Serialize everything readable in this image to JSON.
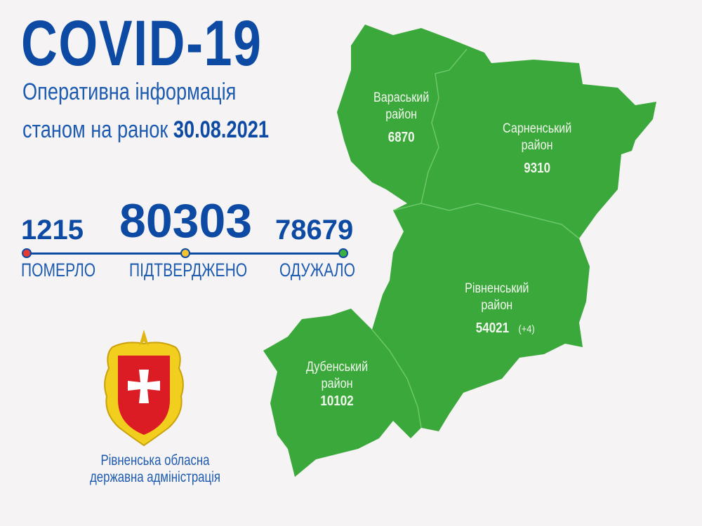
{
  "header": {
    "title": "COVID-19",
    "subtitle_line1": "Оперативна інформація",
    "subtitle_line2_prefix": "станом на ранок",
    "date": "30.08.2021"
  },
  "stats": {
    "deaths": {
      "value": "1215",
      "label": "ПОМЕРЛО",
      "color": "#e53935"
    },
    "confirmed": {
      "value": "80303",
      "label": "ПІДТВЕРДЖЕНО",
      "color": "#f4c430"
    },
    "recovered": {
      "value": "78679",
      "label": "ОДУЖАЛО",
      "color": "#3cb043"
    }
  },
  "map": {
    "fill_color": "#3aa83a",
    "districts": [
      {
        "name_line1": "Вараський",
        "name_line2": "район",
        "value": "6870"
      },
      {
        "name_line1": "Сарненський",
        "name_line2": "район",
        "value": "9310"
      },
      {
        "name_line1": "Рівненський",
        "name_line2": "район",
        "value": "54021",
        "delta": "(+4)"
      },
      {
        "name_line1": "Дубенський",
        "name_line2": "район",
        "value": "10102"
      }
    ]
  },
  "footer": {
    "org_line1": "Рівненська обласна",
    "org_line2": "державна адміністрація"
  }
}
